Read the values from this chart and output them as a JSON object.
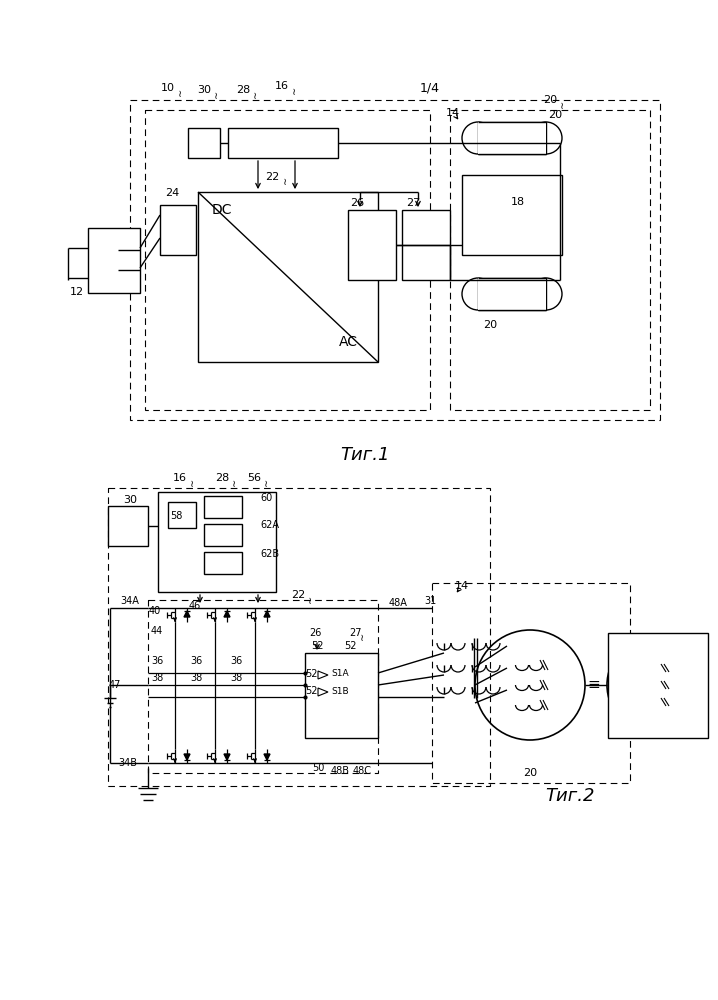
{
  "bg_color": "#ffffff",
  "line_color": "#000000",
  "fig1_caption": "Τиг.1",
  "fig2_caption": "Τиг.2",
  "page_label": "1/4"
}
